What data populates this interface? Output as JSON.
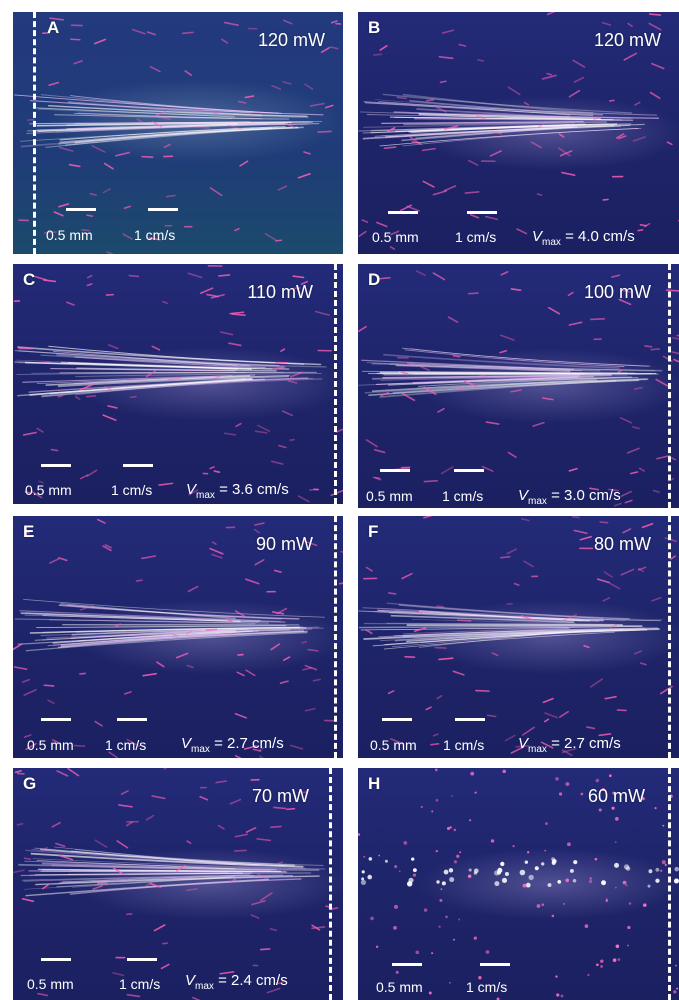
{
  "panels": [
    {
      "letter": "A",
      "power": "120 mW",
      "scale_length": "0.5 mm",
      "scale_velocity": "1 cm/s",
      "vmax_value": ""
    },
    {
      "letter": "B",
      "power": "120 mW",
      "scale_length": "0.5 mm",
      "scale_velocity": "1 cm/s",
      "vmax_value": "4.0 cm/s"
    },
    {
      "letter": "C",
      "power": "110 mW",
      "scale_length": "0.5 mm",
      "scale_velocity": "1 cm/s",
      "vmax_value": "3.6 cm/s"
    },
    {
      "letter": "D",
      "power": "100 mW",
      "scale_length": "0.5 mm",
      "scale_velocity": "1 cm/s",
      "vmax_value": "3.0 cm/s"
    },
    {
      "letter": "E",
      "power": "90 mW",
      "scale_length": "0.5 mm",
      "scale_velocity": "1 cm/s",
      "vmax_value": "2.7 cm/s"
    },
    {
      "letter": "F",
      "power": "80 mW",
      "scale_length": "0.5 mm",
      "scale_velocity": "1 cm/s",
      "vmax_value": "2.7 cm/s"
    },
    {
      "letter": "G",
      "power": "70 mW",
      "scale_length": "0.5 mm",
      "scale_velocity": "1 cm/s",
      "vmax_value": "2.4 cm/s"
    },
    {
      "letter": "H",
      "power": "60 mW",
      "scale_length": "0.5 mm",
      "scale_velocity": "1 cm/s",
      "vmax_value": ""
    }
  ],
  "vmax_symbol": "V",
  "vmax_subscript": "max",
  "vmax_equals": " = "
}
